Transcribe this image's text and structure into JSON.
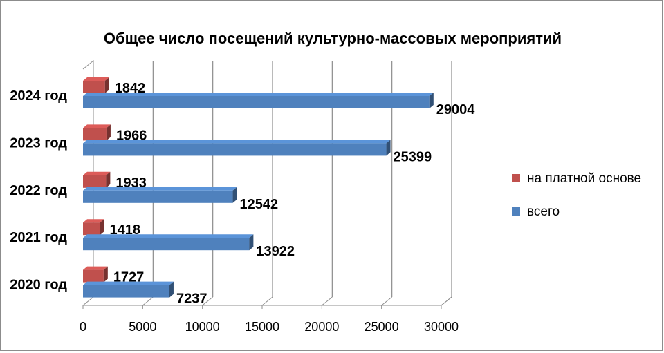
{
  "chart_data": {
    "type": "bar",
    "orientation": "horizontal",
    "style": "3d",
    "title": "Общее число посещений культурно-массовых мероприятий",
    "xlabel": "",
    "ylabel": "",
    "categories": [
      "2020 год",
      "2021 год",
      "2022 год",
      "2023 год",
      "2024 год"
    ],
    "series": [
      {
        "name": "на платной основе",
        "color": "#c0504d",
        "values": [
          1727,
          1418,
          1933,
          1966,
          1842
        ]
      },
      {
        "name": "всего",
        "color": "#4f81bd",
        "values": [
          7237,
          13922,
          12542,
          25399,
          29004
        ]
      }
    ],
    "xlim": [
      0,
      30000
    ],
    "xticks": [
      "0",
      "5000",
      "10000",
      "15000",
      "20000",
      "25000",
      "30000"
    ],
    "grid": true,
    "legend_position": "right",
    "data_labels": true
  }
}
